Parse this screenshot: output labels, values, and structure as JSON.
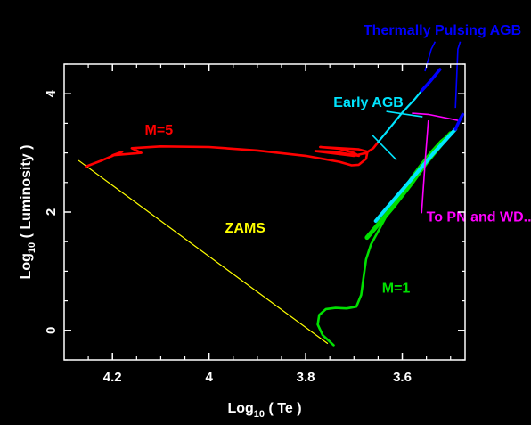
{
  "chart_data": {
    "type": "line",
    "title": "",
    "xlabel": {
      "prefix": "Log",
      "sub": "10",
      "suffix": " ( Te )"
    },
    "ylabel": {
      "prefix": "Log",
      "sub": "10",
      "suffix": " ( Luminosity )"
    },
    "x_reversed": true,
    "xlim": [
      4.3,
      3.47
    ],
    "ylim": [
      -0.5,
      4.5
    ],
    "x_ticks": [
      {
        "value": 4.2,
        "label": "4.2"
      },
      {
        "value": 4.0,
        "label": "4"
      },
      {
        "value": 3.8,
        "label": "3.8"
      },
      {
        "value": 3.6,
        "label": "3.6"
      }
    ],
    "y_ticks": [
      {
        "value": 0,
        "label": "0"
      },
      {
        "value": 2,
        "label": "2"
      },
      {
        "value": 4,
        "label": "4"
      }
    ],
    "grid": false,
    "colors": {
      "background": "#000000",
      "axes": "#ffffff",
      "zams": "#ffff00",
      "m5": "#ff0000",
      "m1": "#00e000",
      "early_agb": "#00e5ff",
      "tp_agb": "#0000ff",
      "pn_wd": "#ff00ff"
    },
    "series": [
      {
        "name": "ZAMS",
        "color": "#ffff00",
        "width": 1.2,
        "points": [
          [
            4.27,
            2.87
          ],
          [
            3.755,
            -0.22
          ]
        ]
      },
      {
        "name": "M=5",
        "color": "#ff0000",
        "width": 2.6,
        "points": [
          [
            4.255,
            2.77
          ],
          [
            4.22,
            2.88
          ],
          [
            4.18,
            3.02
          ],
          [
            4.2,
            2.96
          ],
          [
            4.14,
            3.0
          ],
          [
            4.16,
            3.08
          ],
          [
            4.1,
            3.11
          ],
          [
            4.0,
            3.1
          ],
          [
            3.9,
            3.04
          ],
          [
            3.8,
            2.95
          ],
          [
            3.73,
            2.85
          ],
          [
            3.705,
            2.79
          ],
          [
            3.69,
            2.8
          ],
          [
            3.675,
            2.9
          ],
          [
            3.672,
            3.02
          ],
          [
            3.69,
            3.06
          ],
          [
            3.73,
            3.08
          ],
          [
            3.77,
            3.1
          ],
          [
            3.73,
            3.07
          ],
          [
            3.7,
            3.0
          ],
          [
            3.69,
            2.95
          ],
          [
            3.74,
            3.02
          ],
          [
            3.78,
            3.03
          ],
          [
            3.7,
            2.95
          ],
          [
            3.675,
            3.0
          ],
          [
            3.66,
            3.08
          ],
          [
            3.65,
            3.18
          ]
        ]
      },
      {
        "name": "M=1",
        "color": "#00e000",
        "width": 2.6,
        "points": [
          [
            3.742,
            -0.25
          ],
          [
            3.765,
            -0.08
          ],
          [
            3.775,
            0.1
          ],
          [
            3.772,
            0.26
          ],
          [
            3.758,
            0.36
          ],
          [
            3.738,
            0.38
          ],
          [
            3.715,
            0.37
          ],
          [
            3.695,
            0.4
          ],
          [
            3.685,
            0.6
          ],
          [
            3.68,
            0.9
          ],
          [
            3.675,
            1.2
          ],
          [
            3.665,
            1.45
          ],
          [
            3.655,
            1.6
          ],
          [
            3.645,
            1.75
          ],
          [
            3.635,
            1.9
          ],
          [
            3.62,
            2.1
          ],
          [
            3.6,
            2.35
          ],
          [
            3.58,
            2.6
          ],
          [
            3.56,
            2.82
          ],
          [
            3.54,
            3.02
          ],
          [
            3.52,
            3.2
          ],
          [
            3.505,
            3.3
          ],
          [
            3.49,
            3.4
          ]
        ]
      },
      {
        "name": "M=1 red giant branch",
        "color": "#00e000",
        "width": 5,
        "points": [
          [
            3.673,
            1.57
          ],
          [
            3.62,
            2.08
          ],
          [
            3.58,
            2.5
          ],
          [
            3.55,
            2.84
          ],
          [
            3.52,
            3.14
          ],
          [
            3.5,
            3.33
          ]
        ]
      },
      {
        "name": "Early AGB (M=1)",
        "color": "#00e5ff",
        "width": 4,
        "points": [
          [
            3.655,
            1.85
          ],
          [
            3.61,
            2.28
          ],
          [
            3.57,
            2.66
          ],
          [
            3.535,
            3.0
          ],
          [
            3.51,
            3.22
          ],
          [
            3.49,
            3.4
          ]
        ]
      },
      {
        "name": "Early AGB (M=5)",
        "color": "#00e5ff",
        "width": 2.2,
        "points": [
          [
            3.65,
            3.18
          ],
          [
            3.62,
            3.48
          ],
          [
            3.6,
            3.68
          ],
          [
            3.575,
            3.9
          ],
          [
            3.56,
            4.05
          ]
        ]
      },
      {
        "name": "Thermally Pulsing AGB (M=5)",
        "color": "#0000ff",
        "width": 3.5,
        "points": [
          [
            3.56,
            4.05
          ],
          [
            3.54,
            4.23
          ],
          [
            3.522,
            4.41
          ]
        ]
      },
      {
        "name": "Thermally Pulsing AGB (M=1)",
        "color": "#0000ff",
        "width": 3.5,
        "points": [
          [
            3.49,
            3.4
          ],
          [
            3.482,
            3.54
          ],
          [
            3.475,
            3.65
          ]
        ]
      }
    ],
    "annotations": [
      {
        "text": "Thermally Pulsing AGB",
        "color": "#0000ff",
        "x": 3.517,
        "y": 5.0,
        "anchor": "middle"
      },
      {
        "text": "Early AGB",
        "color": "#00e5ff",
        "x": 3.67,
        "y": 3.78,
        "anchor": "middle"
      },
      {
        "text": "M=5",
        "color": "#ff0000",
        "x": 4.133,
        "y": 3.31,
        "anchor": "start"
      },
      {
        "text": "ZAMS",
        "color": "#ffff00",
        "x": 3.925,
        "y": 1.65,
        "anchor": "middle"
      },
      {
        "text": "To PN and WD...",
        "color": "#ff00ff",
        "x": 3.55,
        "y": 1.84,
        "anchor": "start"
      },
      {
        "text": "M=1",
        "color": "#00e000",
        "x": 3.642,
        "y": 0.64,
        "anchor": "start"
      }
    ],
    "pointer_lines": [
      {
        "color": "#0000ff",
        "points": [
          [
            3.532,
            4.88
          ],
          [
            3.54,
            4.75
          ],
          [
            3.553,
            4.38
          ]
        ]
      },
      {
        "color": "#0000ff",
        "points": [
          [
            3.48,
            4.88
          ],
          [
            3.485,
            4.75
          ],
          [
            3.49,
            3.76
          ]
        ]
      },
      {
        "color": "#00e5ff",
        "points": [
          [
            3.633,
            3.7
          ],
          [
            3.558,
            3.61
          ]
        ]
      },
      {
        "color": "#00e5ff",
        "points": [
          [
            3.662,
            3.3
          ],
          [
            3.612,
            2.88
          ]
        ]
      },
      {
        "color": "#ff00ff",
        "points": [
          [
            3.58,
            3.67
          ],
          [
            3.546,
            3.65
          ],
          [
            3.485,
            3.55
          ]
        ]
      },
      {
        "color": "#ff00ff",
        "points": [
          [
            3.546,
            3.55
          ],
          [
            3.552,
            2.92
          ],
          [
            3.56,
            1.98
          ]
        ]
      }
    ]
  }
}
